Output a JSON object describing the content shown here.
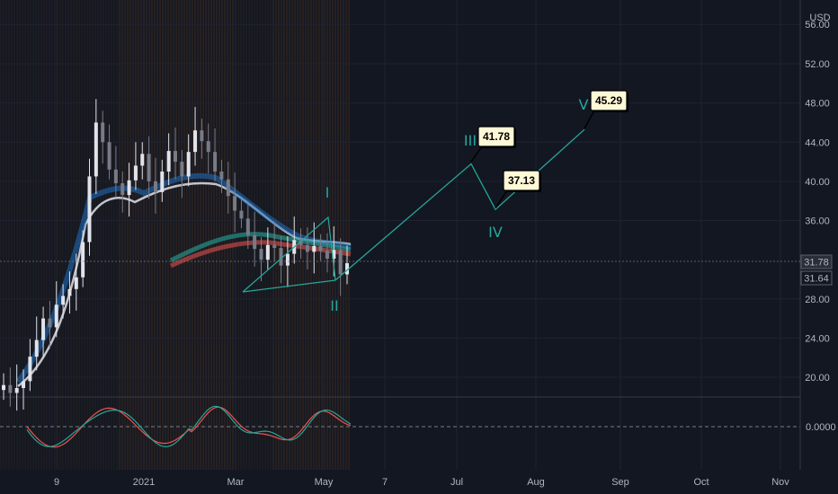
{
  "chart_data": {
    "type": "line",
    "currency": "USD",
    "price_axis": {
      "ticks": [
        "52.00",
        "48.00",
        "44.00",
        "40.00",
        "36.00",
        "28.00",
        "24.00",
        "20.00"
      ],
      "partial_top_tick": "56.00",
      "range": [
        16,
        56
      ]
    },
    "oscillator_axis": {
      "ticks": [
        "0.0000"
      ]
    },
    "time_axis": {
      "ticks": [
        "9",
        "2021",
        "Mar",
        "May",
        "7",
        "Jul",
        "Aug",
        "Sep",
        "Oct",
        "Nov"
      ]
    },
    "price_badges": {
      "last": "31.78",
      "prev": "31.64"
    },
    "elliott_wave": {
      "color": "#26a69a",
      "points": [
        {
          "label": "I",
          "price": 36.2
        },
        {
          "label": "II",
          "price": 29.5
        },
        {
          "label": "III",
          "price": 41.78
        },
        {
          "label": "IV",
          "price": 37.13
        },
        {
          "label": "V",
          "price": 45.29
        }
      ],
      "callouts": [
        "41.78",
        "37.13",
        "45.29"
      ]
    },
    "series": [
      {
        "name": "",
        "kind": "candles",
        "values": [
          19.2,
          18.4,
          18.9,
          19.6,
          22.1,
          23.8,
          26.0,
          25.1,
          27.4,
          28.3,
          29.0,
          30.2,
          33.8,
          40.5,
          46.0,
          44.0,
          41.2,
          39.8,
          38.6,
          40.1,
          41.6,
          42.8,
          40.0,
          38.9,
          41.0,
          43.1,
          42.0,
          40.5,
          43.0,
          45.2,
          44.1,
          43.0,
          41.0,
          40.2,
          38.5,
          37.0,
          36.2,
          34.5,
          33.1,
          32.0,
          33.5,
          33.2,
          31.4,
          32.6,
          34.0,
          33.5,
          32.8,
          33.4,
          32.9,
          32.1,
          33.0,
          30.5,
          31.64
        ]
      },
      {
        "name": "",
        "kind": "ma",
        "color": "#ef5350",
        "values": [
          34.5,
          33.8,
          33.1,
          32.6,
          32.6
        ]
      },
      {
        "name": "",
        "kind": "ma",
        "color": "#26a69a",
        "values": [
          35.0,
          34.2,
          33.5,
          32.9,
          32.4
        ]
      }
    ]
  }
}
